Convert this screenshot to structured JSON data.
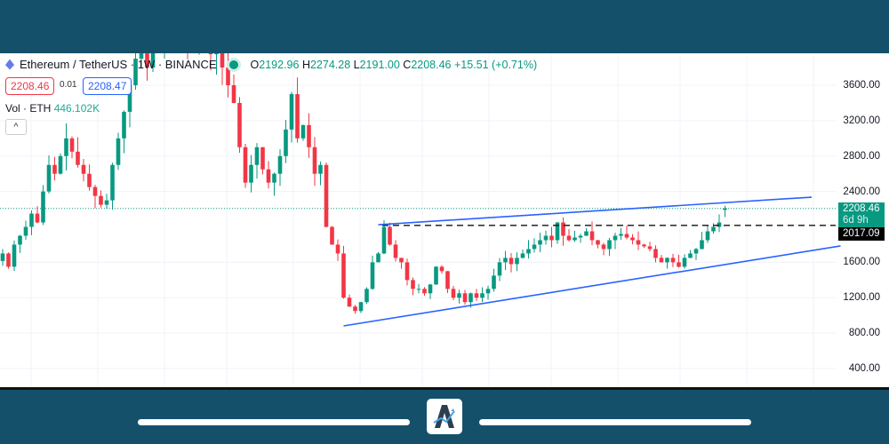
{
  "header": {
    "symbol": "Ethereum / TetherUS · 1W · BINANCE",
    "ohlc": {
      "o_label": "O",
      "o": "2192.96",
      "h_label": "H",
      "h": "2274.28",
      "l_label": "L",
      "l": "2191.00",
      "c_label": "C",
      "c": "2208.46",
      "change": "+15.51 (+0.71%)"
    }
  },
  "order": {
    "sell": "2208.46",
    "spread": "0.01",
    "buy": "2208.47"
  },
  "volume": {
    "label": "Vol · ETH",
    "value": "446.102K"
  },
  "collapse_icon": "chevron-up-icon",
  "colors": {
    "up": "#089981",
    "down": "#f23645",
    "trendline": "#2962ff",
    "frame": "#14506a"
  },
  "price_tags": {
    "last": "2208.46",
    "countdown": "6d 9h",
    "level": "2017.09"
  },
  "chart_data": {
    "type": "candlestick",
    "interval": "1W",
    "ylim": [
      300,
      3900
    ],
    "yticks": [
      3600,
      3200,
      2800,
      2400,
      1600,
      1200,
      800,
      400
    ],
    "yticklabels": [
      "3600.00",
      "3200.00",
      "2800.00",
      "2400.00",
      "1600.00",
      "1200.00",
      "800.00",
      "400.00"
    ],
    "closes": [
      1700,
      1550,
      1800,
      1900,
      2000,
      2150,
      2050,
      2400,
      2700,
      2600,
      2800,
      3000,
      2850,
      2700,
      2600,
      2450,
      2350,
      2250,
      2300,
      2700,
      3000,
      3300,
      3600,
      3900,
      4100,
      3800,
      4300,
      4000,
      4200,
      4400,
      4300,
      4600,
      4100,
      4300,
      4000,
      4100,
      3950,
      4050,
      3800,
      3600,
      3400,
      2900,
      2500,
      2700,
      2900,
      2650,
      2500,
      2600,
      2800,
      3100,
      3500,
      3000,
      3150,
      2900,
      2600,
      2700,
      2000,
      1800,
      1700,
      1200,
      1100,
      1050,
      1150,
      1300,
      1600,
      1700,
      2000,
      1800,
      1650,
      1600,
      1400,
      1300,
      1300,
      1250,
      1350,
      1550,
      1500,
      1300,
      1200,
      1250,
      1150,
      1250,
      1200,
      1250,
      1300,
      1450,
      1600,
      1650,
      1580,
      1650,
      1700,
      1750,
      1800,
      1850,
      1900,
      1850,
      2050,
      1900,
      1850,
      1880,
      1900,
      1950,
      1850,
      1800,
      1750,
      1850,
      1900,
      1920,
      1880,
      1850,
      1800,
      1780,
      1750,
      1650,
      1600,
      1650,
      1600,
      1550,
      1650,
      1700,
      1750,
      1850,
      1950,
      2000,
      2050,
      2208.46
    ],
    "last_open": 2192.96,
    "last_price": 2208.46,
    "horizontal_level": 2017.09,
    "trendlines": [
      {
        "from": {
          "bar": 65,
          "price": 2025
        },
        "to": {
          "bar": 140,
          "price": 2336
        }
      },
      {
        "from": {
          "bar": 59,
          "price": 882
        },
        "to": {
          "bar": 145,
          "price": 1785
        }
      }
    ]
  }
}
